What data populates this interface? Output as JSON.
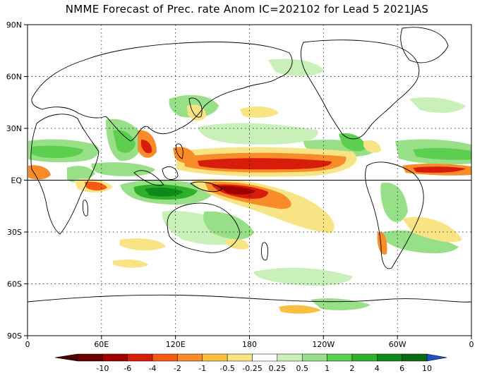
{
  "title": "NMME Forecast of Prec. rate Anom IC=202102 for Lead 5 2021JAS",
  "map": {
    "lat_labels": [
      "90N",
      "60N",
      "30N",
      "EQ",
      "30S",
      "60S",
      "90S"
    ],
    "lon_labels": [
      "0",
      "60E",
      "120E",
      "180",
      "120W",
      "60W",
      "0"
    ],
    "grid": "dotted",
    "equator_line": true
  },
  "colorbar": {
    "labels": [
      "-10",
      "-6",
      "-4",
      "-2",
      "-1",
      "-0.5",
      "-0.25",
      "0.25",
      "0.5",
      "1",
      "2",
      "4",
      "6",
      "10"
    ],
    "colors": [
      "#6b0000",
      "#a00000",
      "#d81c0c",
      "#f55a14",
      "#f88c28",
      "#f8bf40",
      "#f8e484",
      "#ffffff",
      "#c8f0b8",
      "#98e088",
      "#5ccf50",
      "#2fb02a",
      "#0f8a18",
      "#0a6a12"
    ],
    "left_end_color": "#4a0000",
    "right_end_color": "#1e50c8"
  },
  "anomaly_fields": {
    "wet_colors": [
      "#c8f0b8",
      "#98e088",
      "#5ccf50",
      "#2fb02a",
      "#0f8a18"
    ],
    "dry_colors": [
      "#f8e484",
      "#f8bf40",
      "#f88c28",
      "#f55a14",
      "#d81c0c",
      "#a00000"
    ]
  }
}
